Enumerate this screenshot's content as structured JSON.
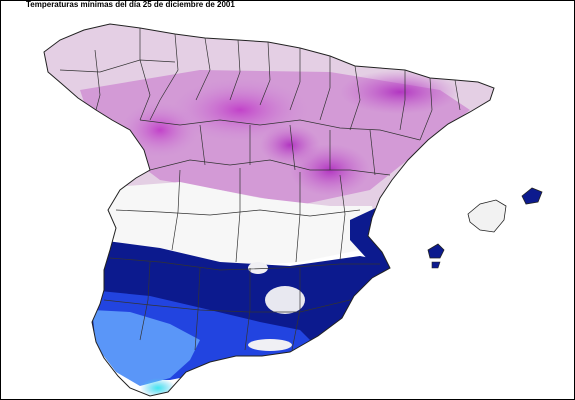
{
  "title": "Temperaturas mínimas del día 25 de diciembre de 2001",
  "colors": {
    "frame": "#000000",
    "background": "#ffffff",
    "very_cold_magenta": "#c040c8",
    "cold_pink": "#d8a8d8",
    "cool_lilac": "#ecdcec",
    "neutral_white": "#f8f8f8",
    "mild_dark_blue": "#0a1a8c",
    "warm_blue": "#1e40e0",
    "warmer_light_blue": "#5aa0ff",
    "warmest_cyan": "#30d8e8",
    "borders": "#222222"
  },
  "regions": [
    "Península Ibérica (España)",
    "Islas Baleares"
  ],
  "map_icons": {
    "islands": "island-shape",
    "provinces": "province-borders"
  }
}
